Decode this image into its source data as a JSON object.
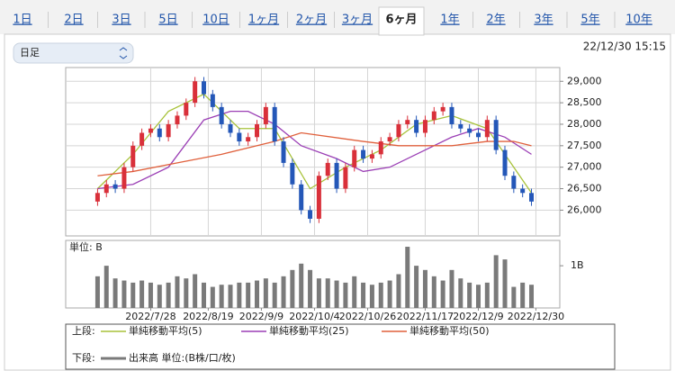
{
  "tabs": [
    "1日",
    "2日",
    "3日",
    "5日",
    "10日",
    "1ヶ月",
    "2ヶ月",
    "3ヶ月",
    "6ヶ月",
    "1年",
    "2年",
    "3年",
    "5年",
    "10年"
  ],
  "active_tab_index": 8,
  "selector": "日足",
  "timestamp": "22/12/30 15:15",
  "legend": {
    "upper_label": "上段:",
    "lower_label": "下段:"
  },
  "chart_data": [
    {
      "type": "candlestick",
      "up_color": "#d9303a",
      "down_color": "#2457b8",
      "x": [
        0,
        1,
        2,
        3,
        4,
        5,
        6,
        7,
        8,
        9,
        10,
        11,
        12,
        13,
        14,
        15,
        16,
        17,
        18,
        19,
        20,
        21,
        22,
        23,
        24,
        25,
        26,
        27,
        28,
        29,
        30,
        31,
        32,
        33,
        34,
        35,
        36,
        37,
        38,
        39,
        40,
        41,
        42,
        43,
        44,
        45,
        46,
        47,
        48,
        49
      ],
      "open": [
        26200,
        26400,
        26600,
        26500,
        27000,
        27500,
        27800,
        27900,
        27700,
        28000,
        28200,
        28500,
        29000,
        28700,
        28400,
        28000,
        27800,
        27600,
        27700,
        28000,
        28400,
        27600,
        27100,
        26600,
        26000,
        25800,
        26800,
        27100,
        26500,
        27000,
        27400,
        27200,
        27300,
        27600,
        27700,
        28000,
        28100,
        27800,
        28100,
        28300,
        28400,
        28000,
        27900,
        27800,
        27700,
        28100,
        27400,
        26800,
        26500,
        26400
      ],
      "high": [
        26500,
        26700,
        26700,
        27100,
        27600,
        27900,
        28000,
        28000,
        28100,
        28300,
        28600,
        29100,
        29100,
        28800,
        28500,
        28100,
        27900,
        27800,
        28100,
        28500,
        28500,
        27700,
        27200,
        26700,
        26100,
        26900,
        27200,
        27200,
        27100,
        27500,
        27500,
        27400,
        27700,
        27800,
        28100,
        28200,
        28200,
        28200,
        28400,
        28500,
        28500,
        28100,
        28000,
        27900,
        28200,
        28200,
        27500,
        26900,
        26600,
        26500
      ],
      "low": [
        26100,
        26300,
        26400,
        26400,
        26900,
        27400,
        27700,
        27600,
        27600,
        27900,
        28100,
        28400,
        28600,
        28300,
        27900,
        27700,
        27500,
        27500,
        27600,
        27900,
        27500,
        27000,
        26500,
        25900,
        25700,
        25700,
        26700,
        26400,
        26400,
        26900,
        27100,
        27100,
        27200,
        27500,
        27600,
        27900,
        27700,
        27700,
        28000,
        28200,
        27900,
        27800,
        27700,
        27600,
        27600,
        27300,
        26700,
        26400,
        26300,
        26100
      ],
      "close": [
        26400,
        26600,
        26500,
        27000,
        27500,
        27800,
        27900,
        27700,
        28000,
        28200,
        28500,
        29000,
        28700,
        28400,
        28000,
        27800,
        27600,
        27700,
        28000,
        28400,
        27600,
        27100,
        26600,
        26000,
        25800,
        26800,
        27100,
        26500,
        27000,
        27400,
        27200,
        27300,
        27600,
        27700,
        28000,
        28100,
        27800,
        28100,
        28300,
        28400,
        28000,
        27900,
        27800,
        27700,
        28100,
        27400,
        26800,
        26500,
        26400,
        26200
      ],
      "series": [
        {
          "name": "単純移動平均(5)",
          "color": "#a8c23a",
          "x": [
            0,
            4,
            8,
            12,
            16,
            20,
            24,
            28,
            32,
            36,
            40,
            44,
            48,
            49
          ],
          "values": [
            26500,
            27300,
            28300,
            28700,
            27900,
            27900,
            26500,
            27000,
            27400,
            28000,
            28200,
            27900,
            26700,
            26400
          ]
        },
        {
          "name": "単純移動平均(25)",
          "color": "#9b3fb5",
          "x": [
            0,
            4,
            8,
            12,
            15,
            17,
            20,
            23,
            27,
            30,
            33,
            37,
            40,
            43,
            46,
            49
          ],
          "values": [
            26500,
            26600,
            27000,
            28100,
            28300,
            28300,
            28000,
            27500,
            27200,
            26900,
            27000,
            27400,
            27700,
            27900,
            27700,
            27300
          ]
        },
        {
          "name": "単純移動平均(50)",
          "color": "#e0603c",
          "x": [
            0,
            4,
            9,
            14,
            20,
            23,
            30,
            34,
            40,
            44,
            47,
            49
          ],
          "values": [
            26800,
            26900,
            27100,
            27300,
            27600,
            27800,
            27600,
            27500,
            27500,
            27600,
            27600,
            27500
          ]
        }
      ],
      "xlim": [
        -3.6,
        52.2
      ],
      "ylim": [
        25400,
        29320
      ],
      "yticks": [
        {
          "value": 26000,
          "label": "26,000"
        },
        {
          "value": 26500,
          "label": "26,500"
        },
        {
          "value": 27000,
          "label": "27,000"
        },
        {
          "value": 27500,
          "label": "27,500"
        },
        {
          "value": 28000,
          "label": "28,000"
        },
        {
          "value": 28500,
          "label": "28,500"
        },
        {
          "value": 29000,
          "label": "29,000"
        }
      ],
      "grid": true
    },
    {
      "type": "bar",
      "title": "単位: B",
      "series": [
        {
          "name": "出来高 単位:(B株/口/枚)",
          "color": "#7a7a7a",
          "x": [
            0,
            1,
            2,
            3,
            4,
            5,
            6,
            7,
            8,
            9,
            10,
            11,
            12,
            13,
            14,
            15,
            16,
            17,
            18,
            19,
            20,
            21,
            22,
            23,
            24,
            25,
            26,
            27,
            28,
            29,
            30,
            31,
            32,
            33,
            34,
            35,
            36,
            37,
            38,
            39,
            40,
            41,
            42,
            43,
            44,
            45,
            46,
            47,
            48,
            49
          ],
          "values": [
            0.75,
            1.0,
            0.7,
            0.65,
            0.6,
            0.65,
            0.6,
            0.55,
            0.6,
            0.75,
            0.7,
            0.8,
            0.6,
            0.5,
            0.55,
            0.55,
            0.6,
            0.6,
            0.65,
            0.7,
            0.6,
            0.75,
            0.9,
            1.05,
            0.9,
            0.7,
            0.7,
            0.65,
            0.6,
            0.75,
            0.6,
            0.55,
            0.6,
            0.65,
            0.8,
            1.45,
            1.0,
            0.9,
            0.75,
            0.65,
            0.9,
            0.7,
            0.6,
            0.55,
            0.6,
            1.25,
            1.15,
            0.5,
            0.6,
            0.55
          ]
        }
      ],
      "xlim": [
        -3.6,
        52.2
      ],
      "ylim": [
        0,
        1.6
      ],
      "yticks": [
        {
          "value": 1,
          "label": "1B"
        }
      ],
      "xticks": [
        {
          "value": 6,
          "label": "2022/7/28"
        },
        {
          "value": 12.5,
          "label": "2022/8/19"
        },
        {
          "value": 18.5,
          "label": "2022/9/9"
        },
        {
          "value": 24.5,
          "label": "2022/10/4"
        },
        {
          "value": 30.5,
          "label": "2022/10/26"
        },
        {
          "value": 37,
          "label": "2022/11/17"
        },
        {
          "value": 43,
          "label": "2022/12/9"
        },
        {
          "value": 49.5,
          "label": "2022/12/30"
        }
      ],
      "grid": false
    }
  ]
}
